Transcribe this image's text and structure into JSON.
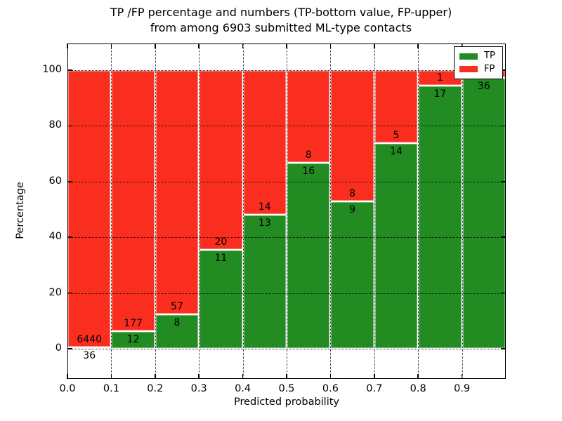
{
  "chart_data": {
    "type": "bar",
    "subtype": "stacked-percentage",
    "title_lines": [
      "TP /FP percentage and numbers (TP-bottom value, FP-upper)",
      "from among 6903 submitted ML-type contacts"
    ],
    "xlabel": "Predicted probability",
    "ylabel": "Percentage",
    "total_contacts": 6903,
    "categories": [
      "0.0-0.1",
      "0.1-0.2",
      "0.2-0.3",
      "0.3-0.4",
      "0.4-0.5",
      "0.5-0.6",
      "0.6-0.7",
      "0.7-0.8",
      "0.8-0.9",
      "0.9-1.0"
    ],
    "series": [
      {
        "name": "TP",
        "color": "#228b22",
        "values": [
          36,
          12,
          8,
          11,
          13,
          16,
          9,
          14,
          17,
          36
        ]
      },
      {
        "name": "FP",
        "color": "#fa2e1f",
        "values": [
          6440,
          177,
          57,
          20,
          14,
          8,
          8,
          5,
          1,
          1
        ]
      }
    ],
    "tp_percent": [
      0.56,
      6.35,
      12.31,
      35.48,
      48.15,
      66.67,
      52.94,
      73.68,
      94.44,
      97.3
    ],
    "x_tick_labels": [
      "0.0",
      "0.1",
      "0.2",
      "0.3",
      "0.4",
      "0.5",
      "0.6",
      "0.7",
      "0.8",
      "0.9"
    ],
    "y_tick_values": [
      0,
      20,
      40,
      60,
      80,
      100
    ],
    "y_tick_labels": [
      "0",
      "20",
      "40",
      "60",
      "80",
      "100"
    ],
    "xlim": [
      0.0,
      1.0
    ],
    "ylim": [
      -11,
      110
    ],
    "grid": "dotted",
    "legend": {
      "position": "upper right",
      "entries": [
        "TP",
        "FP"
      ]
    }
  }
}
